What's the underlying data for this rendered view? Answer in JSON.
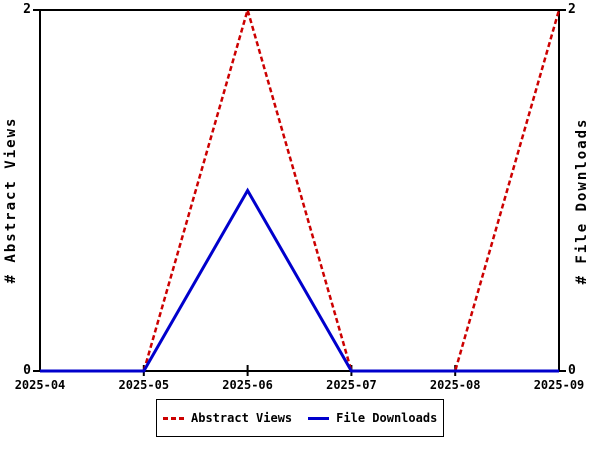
{
  "chart_data": {
    "type": "line",
    "categories": [
      "2025-04",
      "2025-05",
      "2025-06",
      "2025-07",
      "2025-08",
      "2025-09"
    ],
    "series": [
      {
        "name": "Abstract Views",
        "values": [
          0,
          0,
          2,
          0,
          0,
          2
        ],
        "color": "#cc0000",
        "style": "dashed"
      },
      {
        "name": "File Downloads",
        "values": [
          0,
          0,
          1,
          0,
          0,
          0
        ],
        "color": "#0000cc",
        "style": "solid"
      }
    ],
    "ylabel_left": "# Abstract Views",
    "ylabel_right": "# File Downloads",
    "ylim": [
      0,
      2
    ],
    "yticks": [
      0,
      2
    ],
    "grid": false,
    "legend_position": "bottom",
    "axis_color": "#000000",
    "background_color": "#ffffff"
  }
}
